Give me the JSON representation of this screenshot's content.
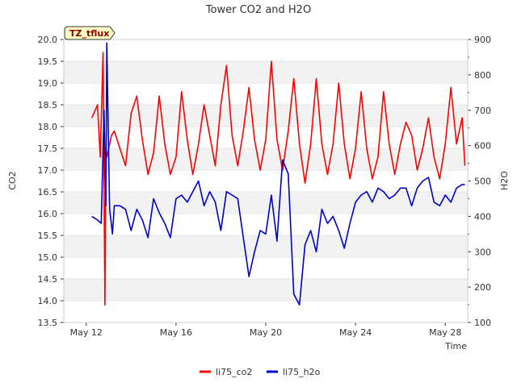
{
  "chart_data": {
    "type": "line",
    "title": "Tower CO2 and H2O",
    "xlabel": "Time",
    "ylabel_left": "CO2",
    "ylabel_right": "H2O",
    "badge": "TZ_tflux",
    "x_start": "2024-05-11",
    "x_end": "2024-05-29",
    "x_ticks": [
      "May 12",
      "May 16",
      "May 20",
      "May 24",
      "May 28"
    ],
    "x_tick_dates": [
      "2024-05-12",
      "2024-05-16",
      "2024-05-20",
      "2024-05-24",
      "2024-05-28"
    ],
    "ylim_left": [
      13.5,
      20.0
    ],
    "yticks_left": [
      "13.5",
      "14.0",
      "14.5",
      "15.0",
      "15.5",
      "16.0",
      "16.5",
      "17.0",
      "17.5",
      "18.0",
      "18.5",
      "19.0",
      "19.5",
      "20.0"
    ],
    "ylim_right": [
      100,
      900
    ],
    "yticks_right": [
      "100",
      "200",
      "300",
      "400",
      "500",
      "600",
      "700",
      "800",
      "900"
    ],
    "grid": "horizontal bands",
    "legend_position": "bottom-center",
    "series": [
      {
        "name": "li75_co2",
        "axis": "left",
        "color": "#ff0000",
        "x": [
          "2024-05-12 06:00",
          "2024-05-12 12:00",
          "2024-05-12 15:00",
          "2024-05-12 18:00",
          "2024-05-12 20:00",
          "2024-05-12 21:00",
          "2024-05-12 22:00",
          "2024-05-13 00:00",
          "2024-05-13 03:00",
          "2024-05-13 06:00",
          "2024-05-13 12:00",
          "2024-05-13 18:00",
          "2024-05-14 00:00",
          "2024-05-14 06:00",
          "2024-05-14 12:00",
          "2024-05-14 18:00",
          "2024-05-15 00:00",
          "2024-05-15 06:00",
          "2024-05-15 12:00",
          "2024-05-15 18:00",
          "2024-05-16 00:00",
          "2024-05-16 06:00",
          "2024-05-16 12:00",
          "2024-05-16 18:00",
          "2024-05-17 00:00",
          "2024-05-17 06:00",
          "2024-05-17 12:00",
          "2024-05-17 18:00",
          "2024-05-18 00:00",
          "2024-05-18 06:00",
          "2024-05-18 12:00",
          "2024-05-18 18:00",
          "2024-05-19 00:00",
          "2024-05-19 06:00",
          "2024-05-19 12:00",
          "2024-05-19 18:00",
          "2024-05-20 00:00",
          "2024-05-20 06:00",
          "2024-05-20 12:00",
          "2024-05-20 18:00",
          "2024-05-21 00:00",
          "2024-05-21 06:00",
          "2024-05-21 12:00",
          "2024-05-21 18:00",
          "2024-05-22 00:00",
          "2024-05-22 06:00",
          "2024-05-22 12:00",
          "2024-05-22 18:00",
          "2024-05-23 00:00",
          "2024-05-23 06:00",
          "2024-05-23 12:00",
          "2024-05-23 18:00",
          "2024-05-24 00:00",
          "2024-05-24 06:00",
          "2024-05-24 12:00",
          "2024-05-24 18:00",
          "2024-05-25 00:00",
          "2024-05-25 06:00",
          "2024-05-25 12:00",
          "2024-05-25 18:00",
          "2024-05-26 00:00",
          "2024-05-26 06:00",
          "2024-05-26 12:00",
          "2024-05-26 18:00",
          "2024-05-27 00:00",
          "2024-05-27 06:00",
          "2024-05-27 12:00",
          "2024-05-27 18:00",
          "2024-05-28 00:00",
          "2024-05-28 06:00",
          "2024-05-28 12:00",
          "2024-05-28 18:00",
          "2024-05-28 21:00"
        ],
        "values": [
          18.2,
          18.5,
          17.3,
          19.7,
          13.9,
          17.5,
          17.3,
          17.5,
          17.8,
          17.9,
          17.5,
          17.1,
          18.3,
          18.7,
          17.7,
          16.9,
          17.4,
          18.7,
          17.6,
          16.9,
          17.3,
          18.8,
          17.7,
          16.9,
          17.6,
          18.5,
          17.8,
          17.1,
          18.5,
          19.4,
          17.8,
          17.1,
          17.9,
          18.9,
          17.7,
          17.0,
          17.7,
          19.5,
          17.7,
          17.0,
          17.9,
          19.1,
          17.6,
          16.7,
          17.6,
          19.1,
          17.6,
          16.9,
          17.6,
          19.0,
          17.6,
          16.8,
          17.5,
          18.8,
          17.5,
          16.8,
          17.3,
          18.8,
          17.6,
          16.9,
          17.6,
          18.1,
          17.8,
          17.0,
          17.5,
          18.2,
          17.3,
          16.8,
          17.6,
          18.9,
          17.6,
          18.2,
          17.1
        ]
      },
      {
        "name": "li75_h2o",
        "axis": "right",
        "color": "#0000cc",
        "x": [
          "2024-05-12 06:00",
          "2024-05-12 12:00",
          "2024-05-12 16:00",
          "2024-05-12 19:00",
          "2024-05-12 21:00",
          "2024-05-12 22:00",
          "2024-05-13 01:00",
          "2024-05-13 04:00",
          "2024-05-13 06:00",
          "2024-05-13 12:00",
          "2024-05-13 18:00",
          "2024-05-14 00:00",
          "2024-05-14 06:00",
          "2024-05-14 12:00",
          "2024-05-14 18:00",
          "2024-05-15 00:00",
          "2024-05-15 06:00",
          "2024-05-15 12:00",
          "2024-05-15 18:00",
          "2024-05-16 00:00",
          "2024-05-16 06:00",
          "2024-05-16 12:00",
          "2024-05-16 18:00",
          "2024-05-17 00:00",
          "2024-05-17 06:00",
          "2024-05-17 12:00",
          "2024-05-17 18:00",
          "2024-05-18 00:00",
          "2024-05-18 06:00",
          "2024-05-18 12:00",
          "2024-05-18 18:00",
          "2024-05-19 00:00",
          "2024-05-19 06:00",
          "2024-05-19 12:00",
          "2024-05-19 18:00",
          "2024-05-20 00:00",
          "2024-05-20 06:00",
          "2024-05-20 12:00",
          "2024-05-20 18:00",
          "2024-05-21 00:00",
          "2024-05-21 06:00",
          "2024-05-21 12:00",
          "2024-05-21 18:00",
          "2024-05-22 00:00",
          "2024-05-22 06:00",
          "2024-05-22 12:00",
          "2024-05-22 18:00",
          "2024-05-23 00:00",
          "2024-05-23 06:00",
          "2024-05-23 12:00",
          "2024-05-23 18:00",
          "2024-05-24 00:00",
          "2024-05-24 06:00",
          "2024-05-24 12:00",
          "2024-05-24 18:00",
          "2024-05-25 00:00",
          "2024-05-25 06:00",
          "2024-05-25 12:00",
          "2024-05-25 18:00",
          "2024-05-26 00:00",
          "2024-05-26 06:00",
          "2024-05-26 12:00",
          "2024-05-26 18:00",
          "2024-05-27 00:00",
          "2024-05-27 06:00",
          "2024-05-27 12:00",
          "2024-05-27 18:00",
          "2024-05-28 00:00",
          "2024-05-28 06:00",
          "2024-05-28 12:00",
          "2024-05-28 18:00",
          "2024-05-28 21:00"
        ],
        "values": [
          400,
          390,
          380,
          700,
          430,
          890,
          420,
          350,
          430,
          430,
          420,
          360,
          420,
          390,
          340,
          450,
          410,
          380,
          340,
          450,
          460,
          440,
          470,
          500,
          430,
          470,
          440,
          360,
          470,
          460,
          450,
          340,
          230,
          300,
          360,
          350,
          460,
          330,
          560,
          520,
          180,
          150,
          320,
          360,
          300,
          420,
          380,
          400,
          360,
          310,
          380,
          440,
          460,
          470,
          440,
          480,
          470,
          450,
          460,
          480,
          480,
          430,
          480,
          500,
          510,
          440,
          430,
          460,
          440,
          480,
          490,
          490
        ]
      }
    ]
  }
}
